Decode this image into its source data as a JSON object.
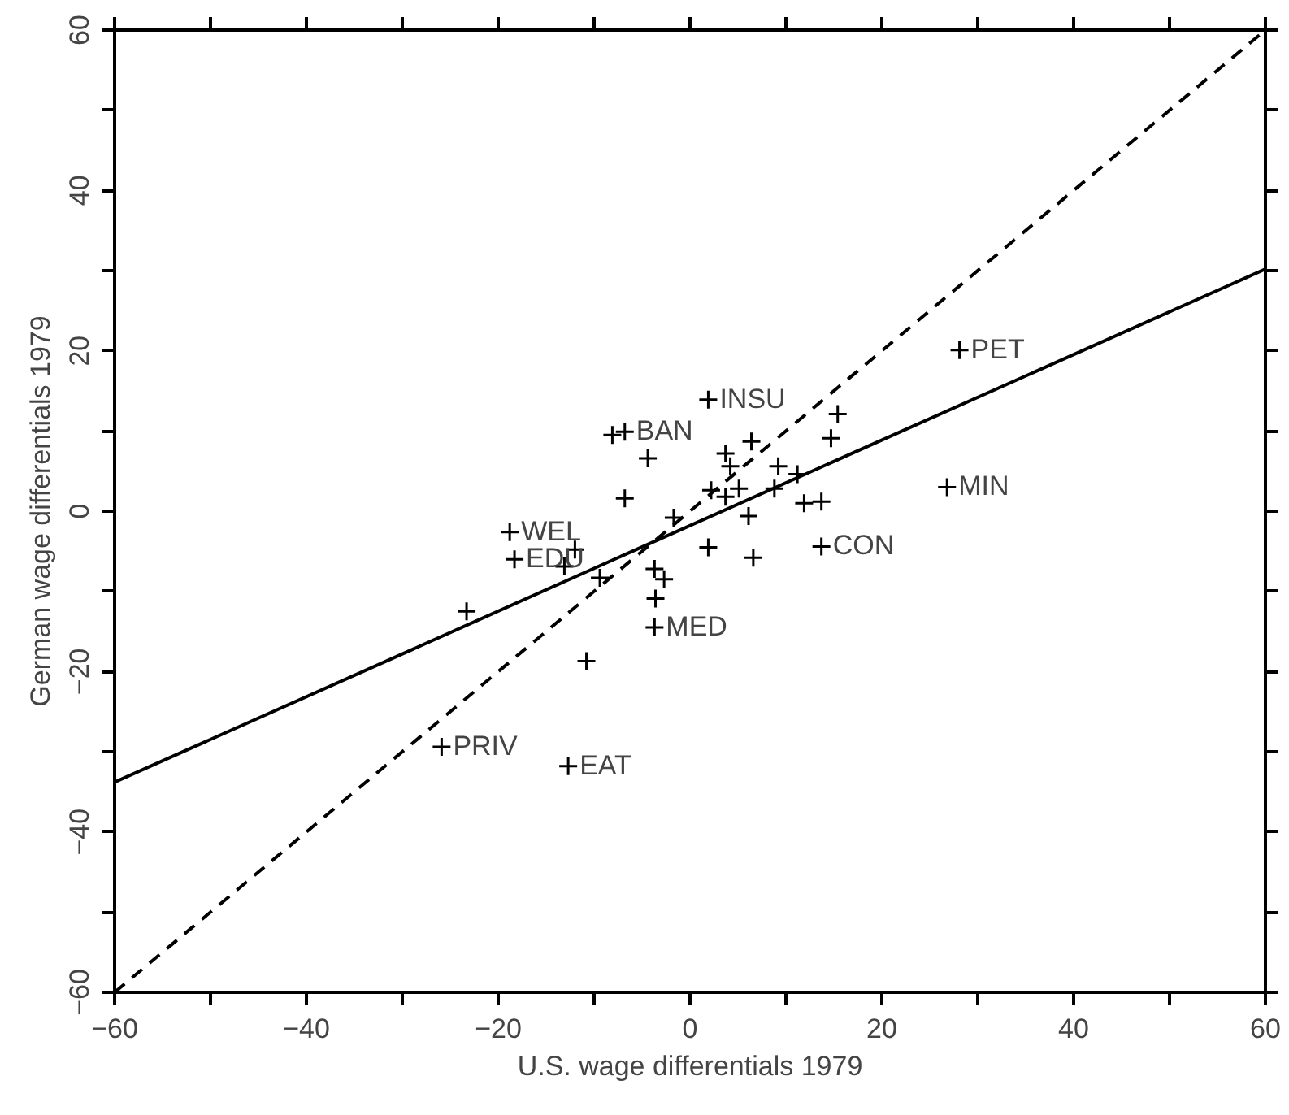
{
  "chart_data": {
    "type": "scatter",
    "xlabel": "U.S. wage differentials 1979",
    "ylabel": "German wage differentials 1979",
    "xlim": [
      -60,
      60
    ],
    "ylim": [
      -60,
      60
    ],
    "xticks": [
      -60,
      {
        "value": -50,
        "label": null
      },
      -40,
      {
        "value": -30,
        "label": null
      },
      -20,
      {
        "value": -10,
        "label": null
      },
      0,
      {
        "value": 10,
        "label": null
      },
      20,
      {
        "value": 30,
        "label": null
      },
      40,
      {
        "value": 50,
        "label": null
      },
      60
    ],
    "yticks": [
      -60,
      {
        "value": -50,
        "label": null
      },
      -40,
      {
        "value": -30,
        "label": null
      },
      -20,
      {
        "value": -10,
        "label": null
      },
      0,
      {
        "value": 10,
        "label": null
      },
      20,
      {
        "value": 30,
        "label": null
      },
      40,
      {
        "value": 50,
        "label": null
      },
      60
    ],
    "grid": false,
    "series": [
      {
        "marker": "cross",
        "color": "#000000",
        "x": [
          -25.9,
          -12.7,
          -23.3,
          -10.8,
          -3.7,
          -3.6,
          -3.7,
          -2.7,
          -9.4,
          -13.1,
          -12.0,
          -18.3,
          -18.8,
          1.9,
          1.9,
          -8.1,
          -6.8,
          -4.4,
          -6.8,
          -1.7,
          6.6,
          6.1,
          2.2,
          3.7,
          5.1,
          3.7,
          4.2,
          6.4,
          9.2,
          8.8,
          11.2,
          11.9,
          13.7,
          14.7,
          15.4,
          13.7,
          28.1,
          26.8
        ],
        "values": [
          -29.4,
          -31.8,
          -12.5,
          -18.7,
          -14.5,
          -10.9,
          -7.2,
          -8.5,
          -8.3,
          -6.9,
          -4.8,
          -6.0,
          -2.6,
          -4.5,
          13.9,
          9.5,
          9.9,
          6.6,
          1.6,
          -0.8,
          -5.8,
          -0.6,
          2.6,
          1.8,
          2.8,
          7.2,
          5.6,
          8.7,
          5.6,
          2.8,
          4.6,
          1.0,
          1.2,
          9.1,
          12.1,
          -4.4,
          20.1,
          3.0
        ]
      },
      {
        "type": "line",
        "color": "#000000",
        "line_style": "solid",
        "x": [
          -60,
          60
        ],
        "values": [
          -33.8,
          30.2
        ]
      },
      {
        "type": "line",
        "color": "#000000",
        "line_style": "dashed",
        "x": [
          -60,
          60
        ],
        "values": [
          -60,
          60
        ]
      }
    ],
    "annotations": [
      {
        "text": "PRIV",
        "x": -25.9,
        "y": -29.4
      },
      {
        "text": "EAT",
        "x": -12.7,
        "y": -31.8
      },
      {
        "text": "MED",
        "x": -3.7,
        "y": -14.5
      },
      {
        "text": "EDU",
        "x": -18.3,
        "y": -6.0
      },
      {
        "text": "WEL",
        "x": -18.8,
        "y": -2.6
      },
      {
        "text": "BAN",
        "x": -6.8,
        "y": 9.9
      },
      {
        "text": "INSU",
        "x": 1.9,
        "y": 13.9
      },
      {
        "text": "CON",
        "x": 13.7,
        "y": -4.4
      },
      {
        "text": "PET",
        "x": 28.1,
        "y": 20.1
      },
      {
        "text": "MIN",
        "x": 26.8,
        "y": 3.0
      }
    ]
  }
}
